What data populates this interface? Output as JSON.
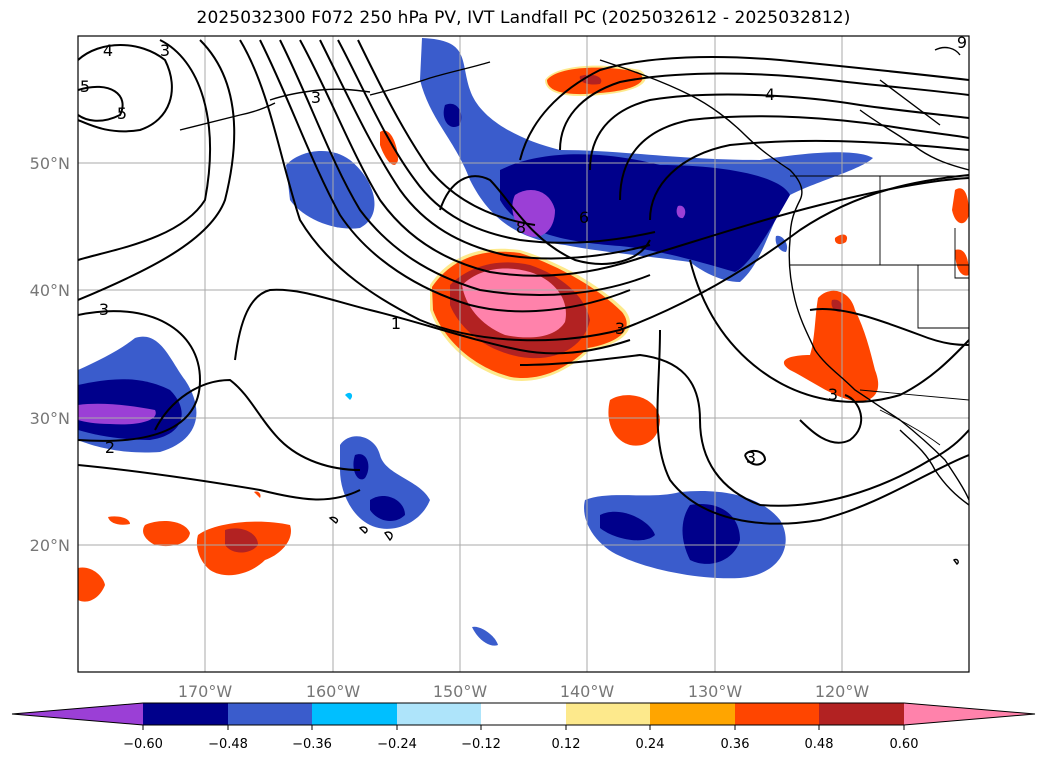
{
  "title": "2025032300 F072 250 hPa PV, IVT Landfall PC (2025032612 - 2025032812)",
  "map": {
    "lat_labels": [
      "50°N",
      "40°N",
      "30°N",
      "20°N"
    ],
    "lon_labels": [
      "170°W",
      "160°W",
      "150°W",
      "140°W",
      "130°W",
      "120°W"
    ],
    "contour_labels": [
      "4",
      "3",
      "9",
      "5",
      "4",
      "3",
      "8",
      "6",
      "1",
      "3",
      "3",
      "2",
      "3",
      "3",
      "5"
    ]
  },
  "colorbar": {
    "ticks": [
      "−0.60",
      "−0.48",
      "−0.36",
      "−0.24",
      "−0.12",
      "0.12",
      "0.24",
      "0.36",
      "0.48",
      "0.60"
    ],
    "colors": [
      "#9b3fd6",
      "#00008b",
      "#3a5ccc",
      "#00bfff",
      "#aee4fa",
      "#ffffff",
      "#fde98c",
      "#ffa500",
      "#ff4500",
      "#b22222",
      "#ff82ab"
    ]
  }
}
